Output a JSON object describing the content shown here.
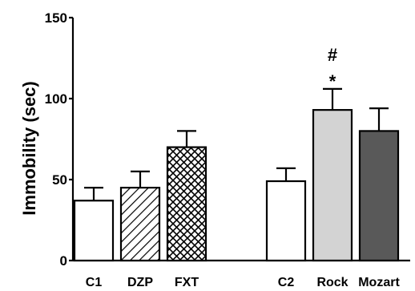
{
  "chart_data": {
    "type": "bar",
    "title": "",
    "xlabel": "",
    "ylabel": "Immobility (sec)",
    "ylim": [
      0,
      150
    ],
    "yticks": [
      "0",
      "50",
      "100",
      "150"
    ],
    "grid": false,
    "legend": "none",
    "categories": [
      "C1",
      "DZP",
      "FXT",
      "C2",
      "Rock",
      "Mozart"
    ],
    "values": [
      37,
      45,
      70,
      49,
      93,
      80
    ],
    "errors": [
      8,
      10,
      10,
      8,
      13,
      14
    ],
    "fills": [
      "white",
      "diagonal-hatch",
      "crosshatch",
      "white",
      "#d3d3d3",
      "#595959"
    ],
    "groups": [
      [
        "C1",
        "DZP",
        "FXT"
      ],
      [
        "C2",
        "Rock",
        "Mozart"
      ]
    ],
    "annotations": [
      {
        "category": "Rock",
        "text": "#"
      },
      {
        "category": "Rock",
        "text": "*"
      }
    ]
  }
}
